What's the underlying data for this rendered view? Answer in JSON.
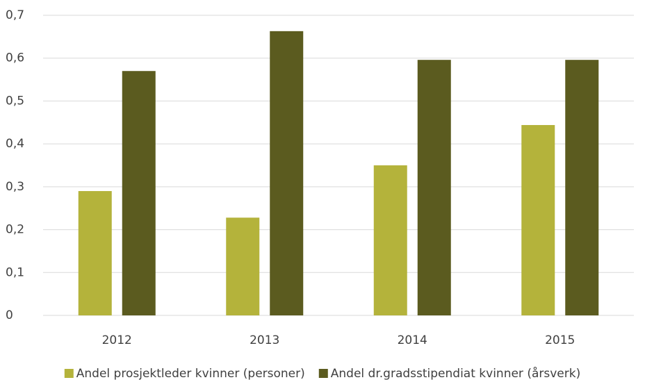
{
  "chart_data": {
    "type": "bar",
    "categories": [
      "2012",
      "2013",
      "2014",
      "2015"
    ],
    "series": [
      {
        "name": "Andel prosjektleder kvinner (personer)",
        "color": "#b4b33b",
        "values": [
          0.29,
          0.228,
          0.35,
          0.444
        ]
      },
      {
        "name": "Andel dr.gradsstipendiat kvinner (årsverk)",
        "color": "#5b5b1f",
        "values": [
          0.57,
          0.663,
          0.596,
          0.596
        ]
      }
    ],
    "ylim": [
      0,
      0.7
    ],
    "yticks": [
      0,
      {
        "value": 0.1,
        "label": "0,1"
      },
      {
        "value": 0.2,
        "label": "0,2"
      },
      {
        "value": 0.3,
        "label": "0,3"
      },
      {
        "value": 0.4,
        "label": "0,4"
      },
      {
        "value": 0.5,
        "label": "0,5"
      },
      {
        "value": 0.6,
        "label": "0,6"
      },
      {
        "value": 0.7,
        "label": "0,7"
      }
    ],
    "grid": true,
    "legend": "bottom"
  }
}
